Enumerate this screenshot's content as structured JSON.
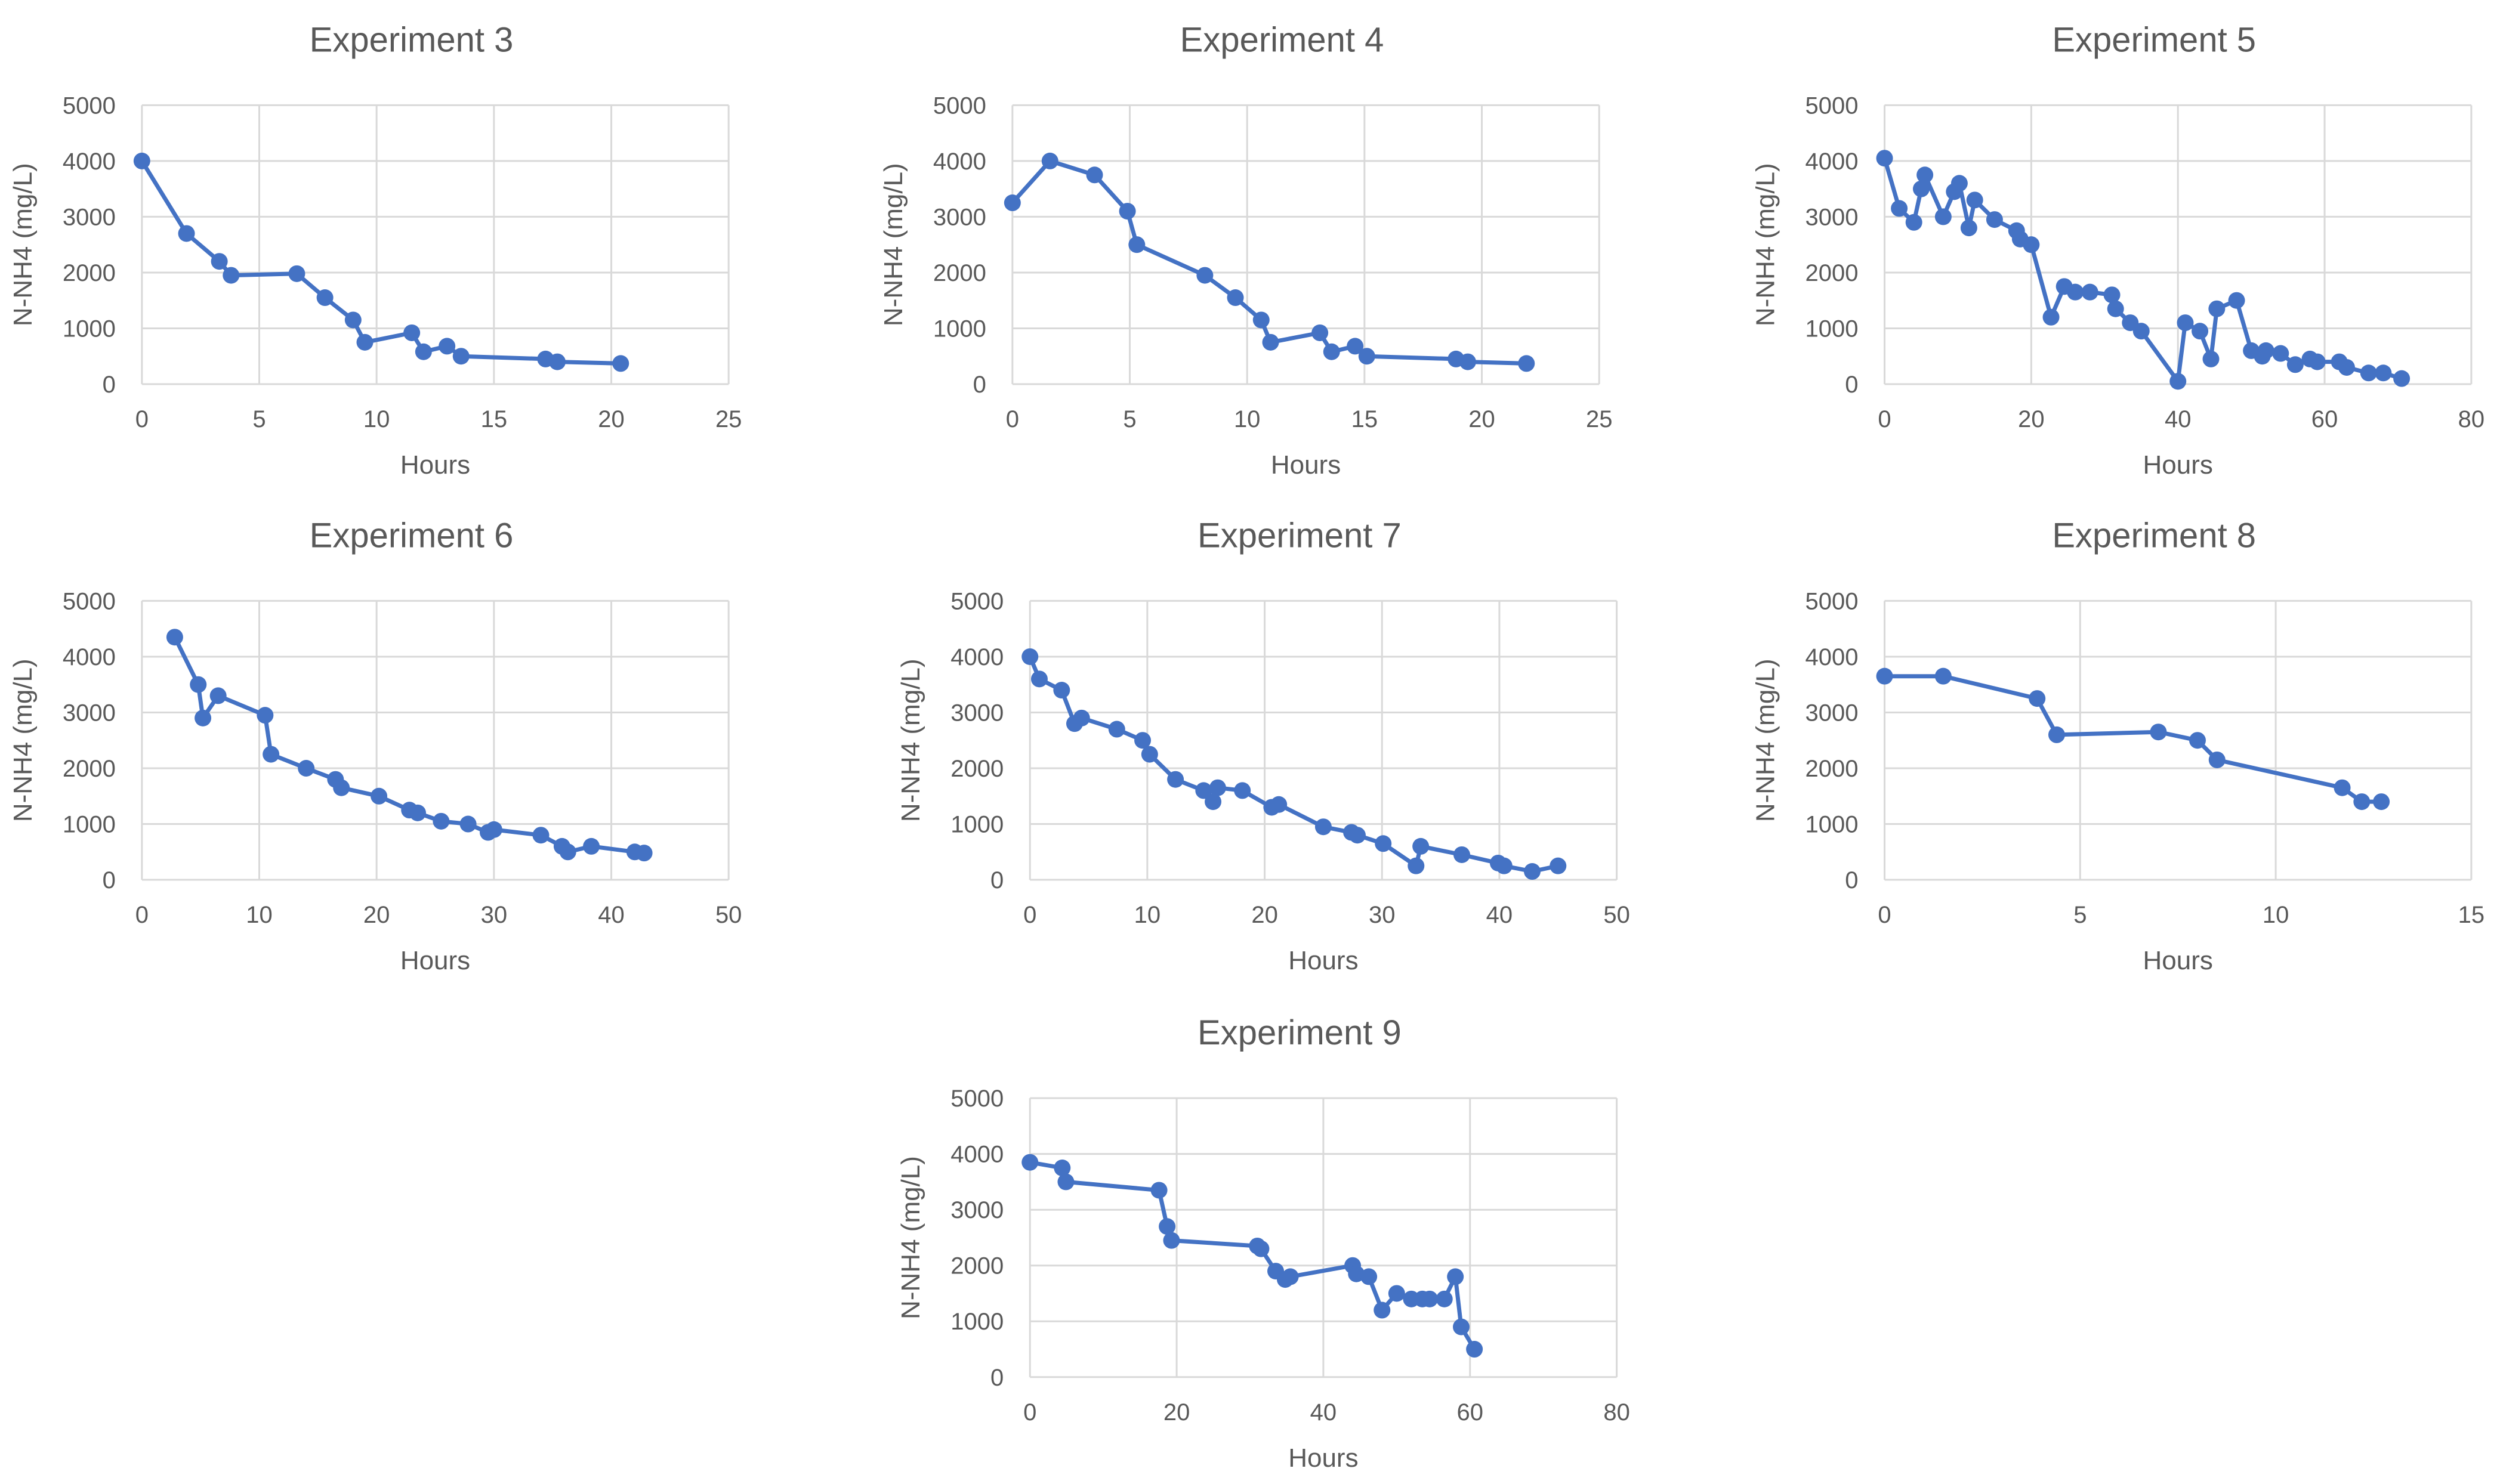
{
  "figure": {
    "y_axis_label": "N-NH4 (mg/L)",
    "x_axis_label": "Hours",
    "line_color": "#4472c4",
    "grid_color": "#d9d9d9",
    "tick_color": "#595959",
    "title_color": "#595959"
  },
  "chart_data": [
    {
      "type": "line",
      "title": "Experiment 3",
      "xlabel": "Hours",
      "ylabel": "N-NH4 (mg/L)",
      "xlim": [
        0,
        25
      ],
      "ylim": [
        0,
        5000
      ],
      "xticks": [
        0,
        5,
        10,
        15,
        20,
        25
      ],
      "yticks": [
        0,
        1000,
        2000,
        3000,
        4000,
        5000
      ],
      "x": [
        0,
        1.9,
        3.3,
        3.8,
        6.6,
        7.8,
        9.0,
        9.5,
        11.5,
        12.0,
        13.0,
        13.6,
        17.2,
        17.7,
        20.4
      ],
      "y": [
        4000,
        2700,
        2200,
        1950,
        1980,
        1550,
        1150,
        750,
        920,
        580,
        680,
        500,
        450,
        400,
        370
      ]
    },
    {
      "type": "line",
      "title": "Experiment 4",
      "xlabel": "Hours",
      "ylabel": "N-NH4 (mg/L)",
      "xlim": [
        0,
        25
      ],
      "ylim": [
        0,
        5000
      ],
      "xticks": [
        0,
        5,
        10,
        15,
        20,
        25
      ],
      "yticks": [
        0,
        1000,
        2000,
        3000,
        4000,
        5000
      ],
      "x": [
        0,
        1.6,
        3.5,
        4.9,
        5.3,
        8.2,
        9.5,
        10.6,
        11.0,
        13.1,
        13.6,
        14.6,
        15.1,
        18.9,
        19.4,
        21.9
      ],
      "y": [
        3250,
        4000,
        3750,
        3100,
        2500,
        1950,
        1550,
        1150,
        750,
        920,
        580,
        680,
        500,
        450,
        400,
        370
      ]
    },
    {
      "type": "line",
      "title": "Experiment 5",
      "xlabel": "Hours",
      "ylabel": "N-NH4 (mg/L)",
      "xlim": [
        0,
        80
      ],
      "ylim": [
        0,
        5000
      ],
      "xticks": [
        0,
        20,
        40,
        60,
        80
      ],
      "yticks": [
        0,
        1000,
        2000,
        3000,
        4000,
        5000
      ],
      "x": [
        0,
        2,
        4,
        5,
        5.5,
        8,
        9.5,
        10.2,
        11.5,
        12.3,
        15,
        18,
        18.5,
        20,
        22.7,
        24.5,
        26,
        28,
        31,
        31.5,
        33.5,
        35,
        40,
        41,
        43,
        44.5,
        45.3,
        48,
        50,
        51.5,
        52,
        54,
        56,
        58,
        59,
        62,
        63,
        66,
        68,
        70.5
      ],
      "y": [
        4050,
        3150,
        2900,
        3500,
        3750,
        3000,
        3450,
        3600,
        2800,
        3300,
        2950,
        2750,
        2600,
        2500,
        1200,
        1750,
        1650,
        1650,
        1600,
        1350,
        1100,
        950,
        50,
        1100,
        950,
        450,
        1350,
        1500,
        600,
        500,
        600,
        550,
        350,
        450,
        400,
        400,
        300,
        200,
        200,
        100
      ]
    },
    {
      "type": "line",
      "title": "Experiment 6",
      "xlabel": "Hours",
      "ylabel": "N-NH4 (mg/L)",
      "xlim": [
        0,
        50
      ],
      "ylim": [
        0,
        5000
      ],
      "xticks": [
        0,
        10,
        20,
        30,
        40,
        50
      ],
      "yticks": [
        0,
        1000,
        2000,
        3000,
        4000,
        5000
      ],
      "x": [
        2.8,
        4.8,
        5.2,
        6.5,
        10.5,
        11.0,
        14.0,
        16.5,
        17.0,
        20.2,
        22.8,
        23.5,
        25.5,
        27.8,
        29.5,
        30.0,
        34.0,
        35.8,
        36.3,
        38.3,
        42.0,
        42.8
      ],
      "y": [
        4350,
        3500,
        2900,
        3300,
        2950,
        2250,
        2000,
        1800,
        1650,
        1500,
        1250,
        1200,
        1050,
        1000,
        850,
        900,
        800,
        600,
        500,
        600,
        500,
        480
      ]
    },
    {
      "type": "line",
      "title": "Experiment 7",
      "xlabel": "Hours",
      "ylabel": "N-NH4 (mg/L)",
      "xlim": [
        0,
        50
      ],
      "ylim": [
        0,
        5000
      ],
      "xticks": [
        0,
        10,
        20,
        30,
        40,
        50
      ],
      "yticks": [
        0,
        1000,
        2000,
        3000,
        4000,
        5000
      ],
      "x": [
        0,
        0.8,
        2.7,
        3.8,
        4.4,
        7.4,
        9.6,
        10.2,
        12.4,
        14.8,
        15.6,
        16.0,
        18.1,
        20.6,
        21.2,
        25.0,
        27.4,
        27.9,
        30.1,
        32.9,
        33.3,
        36.8,
        39.9,
        40.4,
        42.8,
        45.0
      ],
      "y": [
        4000,
        3600,
        3400,
        2800,
        2900,
        2700,
        2500,
        2250,
        1800,
        1600,
        1400,
        1650,
        1600,
        1300,
        1350,
        950,
        850,
        800,
        650,
        250,
        600,
        450,
        300,
        250,
        150,
        250
      ]
    },
    {
      "type": "line",
      "title": "Experiment 8",
      "xlabel": "Hours",
      "ylabel": "N-NH4 (mg/L)",
      "xlim": [
        0,
        15
      ],
      "ylim": [
        0,
        5000
      ],
      "xticks": [
        0,
        5,
        10,
        15
      ],
      "yticks": [
        0,
        1000,
        2000,
        3000,
        4000,
        5000
      ],
      "x": [
        0,
        1.5,
        3.9,
        4.4,
        7.0,
        8.0,
        8.5,
        11.7,
        12.2,
        12.7
      ],
      "y": [
        3650,
        3650,
        3250,
        2600,
        2650,
        2500,
        2150,
        1650,
        1400,
        1400
      ]
    },
    {
      "type": "line",
      "title": "Experiment 9",
      "xlabel": "Hours",
      "ylabel": "N-NH4 (mg/L)",
      "xlim": [
        0,
        80
      ],
      "ylim": [
        0,
        5000
      ],
      "xticks": [
        0,
        20,
        40,
        60,
        80
      ],
      "yticks": [
        0,
        1000,
        2000,
        3000,
        4000,
        5000
      ],
      "x": [
        0,
        4.4,
        4.9,
        17.6,
        18.7,
        19.3,
        31.0,
        31.5,
        33.5,
        34.8,
        35.5,
        44.0,
        44.5,
        46.2,
        48.0,
        50.0,
        52.0,
        53.5,
        54.5,
        56.5,
        58.0,
        58.8,
        60.6
      ],
      "y": [
        3850,
        3750,
        3500,
        3350,
        2700,
        2450,
        2350,
        2300,
        1900,
        1750,
        1800,
        2000,
        1850,
        1800,
        1200,
        1500,
        1400,
        1400,
        1400,
        1400,
        1800,
        900,
        500
      ]
    }
  ]
}
